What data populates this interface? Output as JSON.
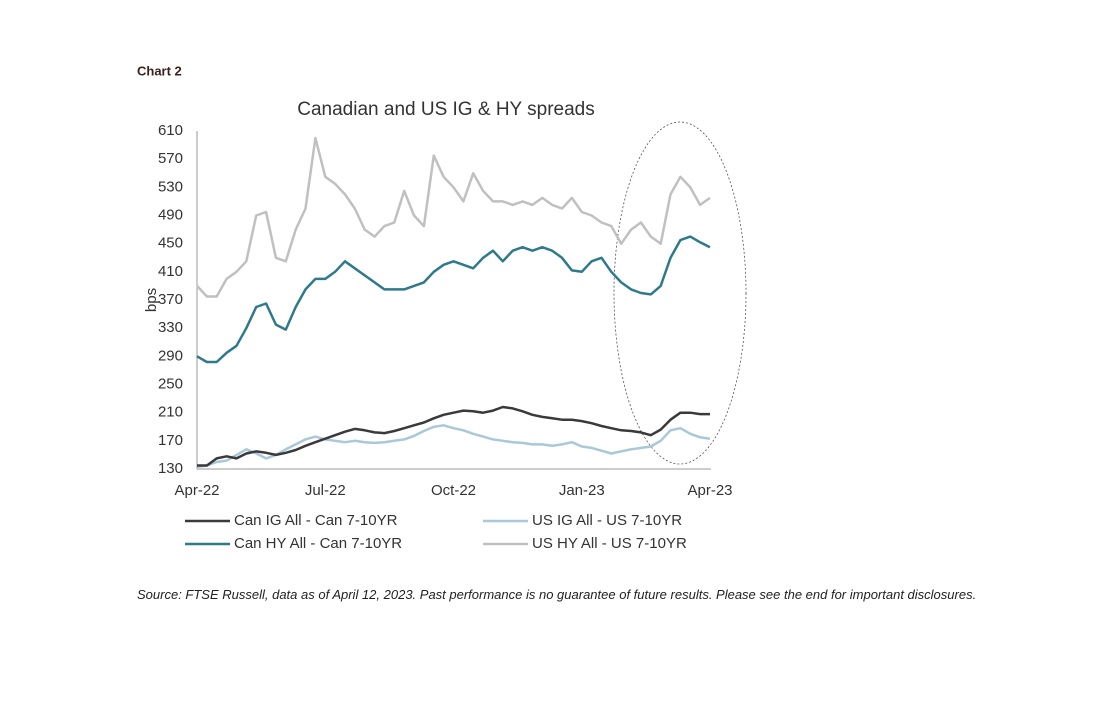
{
  "header": "Chart 2",
  "source": "Source: FTSE Russell, data as of April 12, 2023. Past performance is no guarantee of future results. Please see the end for important disclosures.",
  "chart_data": {
    "type": "line",
    "title": "Canadian and US IG & HY spreads",
    "y_label": "bps",
    "categories": [
      "Apr-22",
      null,
      null,
      null,
      null,
      null,
      null,
      null,
      null,
      null,
      null,
      null,
      null,
      "Jul-22",
      null,
      null,
      null,
      null,
      null,
      null,
      null,
      null,
      null,
      null,
      null,
      null,
      "Oct-22",
      null,
      null,
      null,
      null,
      null,
      null,
      null,
      null,
      null,
      null,
      null,
      null,
      "Jan-23",
      null,
      null,
      null,
      null,
      null,
      null,
      null,
      null,
      null,
      null,
      null,
      null,
      "Apr-23"
    ],
    "ylim": [
      130,
      610
    ],
    "yticks": [
      130,
      170,
      210,
      250,
      290,
      330,
      370,
      410,
      450,
      490,
      530,
      570,
      610
    ],
    "grid": false,
    "series": [
      {
        "name": "Can IG All - Can 7-10YR",
        "color": "#3a3a3a",
        "values": [
          135,
          135,
          145,
          148,
          145,
          152,
          155,
          153,
          150,
          153,
          157,
          163,
          168,
          173,
          178,
          183,
          187,
          185,
          182,
          181,
          184,
          188,
          192,
          196,
          202,
          207,
          210,
          213,
          212,
          210,
          213,
          218,
          216,
          212,
          207,
          204,
          202,
          200,
          200,
          198,
          195,
          191,
          188,
          185,
          184,
          182,
          178,
          186,
          200,
          210,
          210,
          208,
          208
        ]
      },
      {
        "name": "US IG All - US 7-10YR",
        "color": "#a9c8d8",
        "values": [
          133,
          135,
          140,
          142,
          150,
          158,
          152,
          145,
          150,
          158,
          165,
          172,
          176,
          172,
          170,
          168,
          170,
          168,
          167,
          168,
          170,
          172,
          177,
          184,
          190,
          192,
          188,
          185,
          180,
          176,
          172,
          170,
          168,
          167,
          165,
          165,
          163,
          165,
          168,
          162,
          160,
          156,
          152,
          155,
          158,
          160,
          162,
          170,
          185,
          188,
          180,
          175,
          173
        ]
      },
      {
        "name": "Can HY All - Can 7-10YR",
        "color": "#2e7a8c",
        "values": [
          290,
          282,
          282,
          295,
          305,
          330,
          360,
          365,
          335,
          328,
          360,
          385,
          400,
          400,
          410,
          425,
          415,
          405,
          395,
          385,
          385,
          385,
          390,
          395,
          410,
          420,
          425,
          420,
          415,
          430,
          440,
          425,
          440,
          445,
          440,
          445,
          440,
          430,
          412,
          410,
          425,
          430,
          410,
          395,
          385,
          380,
          378,
          390,
          430,
          455,
          460,
          452,
          445
        ]
      },
      {
        "name": "US HY All - US 7-10YR",
        "color": "#c0c0c0",
        "values": [
          390,
          375,
          375,
          400,
          410,
          425,
          490,
          495,
          430,
          425,
          470,
          500,
          600,
          545,
          535,
          520,
          500,
          470,
          460,
          475,
          480,
          525,
          490,
          475,
          575,
          545,
          530,
          510,
          550,
          525,
          510,
          510,
          505,
          510,
          505,
          515,
          505,
          500,
          515,
          495,
          490,
          480,
          475,
          450,
          470,
          480,
          460,
          450,
          520,
          545,
          530,
          505,
          515
        ]
      }
    ]
  }
}
